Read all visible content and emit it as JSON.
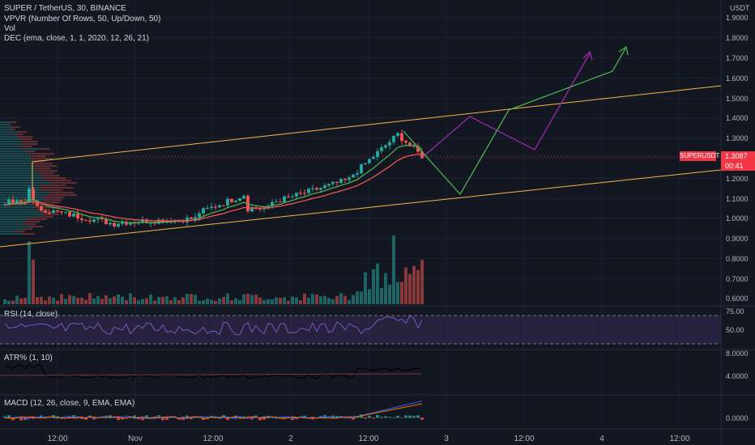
{
  "colors": {
    "background": "#131722",
    "up": "#26a69a",
    "down": "#ef5350",
    "channel": "#f5b942",
    "projection_purple": "#9c27b0",
    "projection_green": "#4caf50",
    "rsi": "#7e57c2",
    "atr": "#000000",
    "macd": "#2962ff",
    "signal": "#ff6d00"
  },
  "legend": {
    "symbol": "SUPER / TetherUS, 30, BINANCE",
    "vpvr": "VPVR (Number Of Rows, 50, Up/Down, 50)",
    "vol": "Vol",
    "dec": "DEC (ema, close, 1, 1, 2020, 12, 26, 21)"
  },
  "currency": "USDT",
  "price_axis": [
    "1.9000",
    "1.8000",
    "1.7000",
    "1.6000",
    "1.5000",
    "1.4000",
    "1.3000",
    "1.2000",
    "1.1000",
    "1.0000",
    "0.9000",
    "0.8000",
    "0.7000",
    "0.6000"
  ],
  "last_price": {
    "symbol": "SUPERUSDT",
    "price": "1.3087",
    "countdown": "00:41"
  },
  "time_axis": [
    "12:00",
    "Nov",
    "12:00",
    "2",
    "12:00",
    "3",
    "12:00",
    "4",
    "12:00"
  ],
  "rsi": {
    "label": "RSI (14, close)",
    "levels": [
      "75.00",
      "50.00"
    ],
    "upper": 70,
    "lower": 30
  },
  "atr": {
    "label": "ATR% (1, 10)",
    "levels": [
      "8.0000",
      "4.0000"
    ]
  },
  "macd": {
    "label": "MACD (12, 26, close, 9, EMA, EMA)",
    "levels": [
      "0.0000"
    ]
  }
}
